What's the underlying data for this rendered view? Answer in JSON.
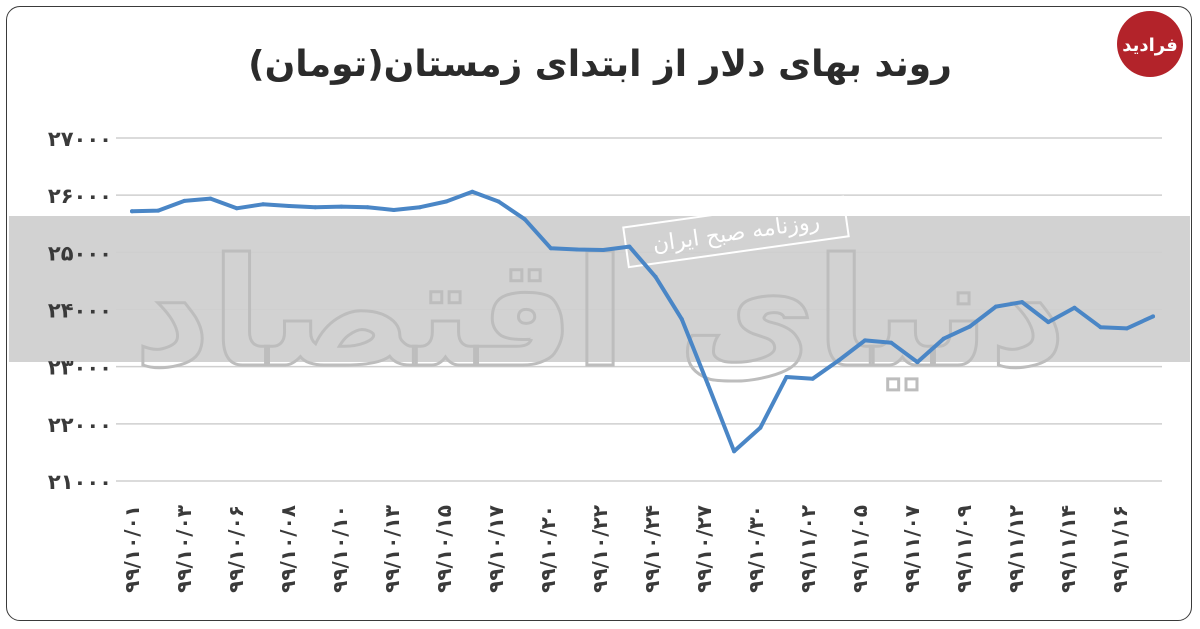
{
  "colors": {
    "line": "#4a86c6",
    "band": "#d2d2d2",
    "grid": "#cfcfcf",
    "logo": "#b3232a",
    "frame": "#3a3a3a"
  },
  "watermark": {
    "main_text": "دنیای اقتصاد",
    "stamp_text": "روزنامه صبح ایران"
  },
  "logo": {
    "text": "فرادید"
  },
  "chart_data": {
    "type": "line",
    "title": "روند بهای دلار از ابتدای زمستان(تومان)",
    "xlabel": "",
    "ylabel": "",
    "ylim": [
      21000,
      27000
    ],
    "yticks": [
      21000,
      22000,
      23000,
      24000,
      25000,
      26000,
      27000
    ],
    "ytick_labels": [
      "۲۱۰۰۰",
      "۲۲۰۰۰",
      "۲۳۰۰۰",
      "۲۴۰۰۰",
      "۲۵۰۰۰",
      "۲۶۰۰۰",
      "۲۷۰۰۰"
    ],
    "xtick_labels": [
      "۹۹/۱۰/۰۱",
      "۹۹/۱۰/۰۳",
      "۹۹/۱۰/۰۶",
      "۹۹/۱۰/۰۸",
      "۹۹/۱۰/۱۰",
      "۹۹/۱۰/۱۳",
      "۹۹/۱۰/۱۵",
      "۹۹/۱۰/۱۷",
      "۹۹/۱۰/۲۰",
      "۹۹/۱۰/۲۲",
      "۹۹/۱۰/۲۴",
      "۹۹/۱۰/۲۷",
      "۹۹/۱۰/۳۰",
      "۹۹/۱۱/۰۲",
      "۹۹/۱۱/۰۵",
      "۹۹/۱۱/۰۷",
      "۹۹/۱۱/۰۹",
      "۹۹/۱۱/۱۲",
      "۹۹/۱۱/۱۴",
      "۹۹/۱۱/۱۶"
    ],
    "grid": true,
    "legend": "none",
    "series": [
      {
        "values": [
          25720,
          25730,
          25900,
          25940,
          25770,
          25840,
          25810,
          25790,
          25800,
          25790,
          25740,
          25790,
          25890,
          26060,
          25890,
          25580,
          25070,
          25050,
          25040,
          25100,
          24570,
          23830,
          22690,
          21520,
          21930,
          22820,
          22790,
          23110,
          23460,
          23420,
          23080,
          23490,
          23700,
          24050,
          24130,
          23780,
          24030,
          23690,
          23670,
          23880
        ]
      }
    ]
  }
}
